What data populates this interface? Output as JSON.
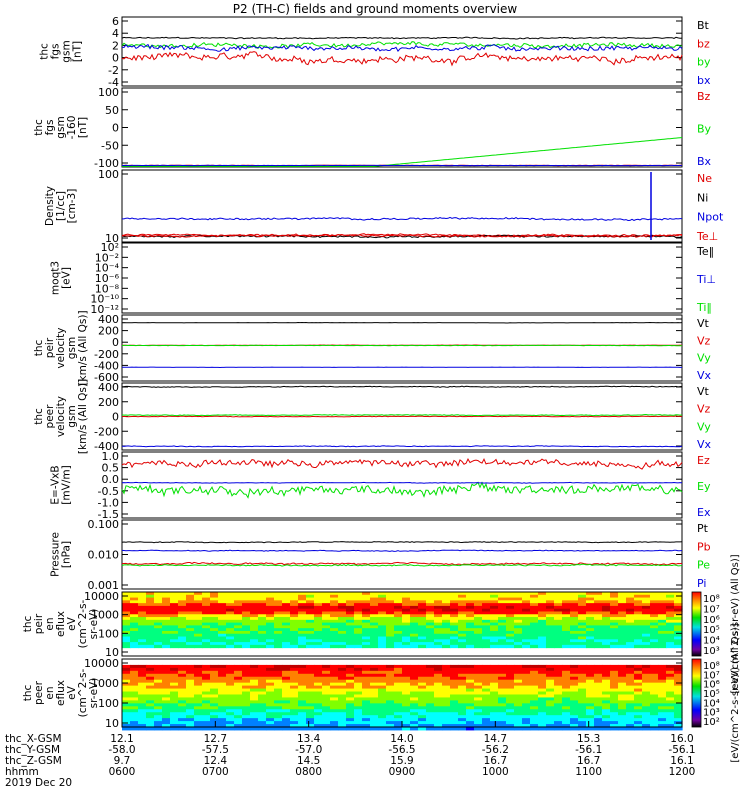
{
  "title": "P2 (TH-C) fields and ground moments overview",
  "date_label": "2019 Dec 20",
  "colors": {
    "black": "#000000",
    "red": "#e00000",
    "green": "#00e000",
    "blue": "#0000e0"
  },
  "chart_data": [
    {
      "id": "fgs",
      "type": "line",
      "ylabel": [
        "thc",
        "fgs",
        "gsm",
        "[nT]"
      ],
      "yticks": [
        "6",
        "4",
        "2",
        "0",
        "-2",
        "-4"
      ],
      "ylim": [
        -4,
        6.5
      ],
      "series": [
        {
          "name": "Bt",
          "color": "black",
          "level": 3.3,
          "noise": 0.15
        },
        {
          "name": "bz",
          "color": "red",
          "level": 0.2,
          "noise": 0.9
        },
        {
          "name": "by",
          "color": "green",
          "level": 2.2,
          "noise": 0.5
        },
        {
          "name": "bx",
          "color": "blue",
          "level": 1.8,
          "noise": 0.6
        }
      ]
    },
    {
      "id": "fgs_dsl",
      "type": "line",
      "ylabel": [
        "thc",
        "fgs",
        "gsm",
        "-160",
        "[nT]"
      ],
      "yticks": [
        "100",
        "50",
        "0",
        "-50",
        "-100"
      ],
      "ylim": [
        -160,
        100
      ],
      "series": [
        {
          "name": "Bz",
          "color": "red",
          "level": -155,
          "noise": 1
        },
        {
          "name": "By",
          "color": "green",
          "level": -100,
          "noise": 0.5
        },
        {
          "name": "Bx",
          "color": "blue",
          "level": -155,
          "noise": 0.5
        }
      ]
    },
    {
      "id": "density",
      "type": "line",
      "log": true,
      "ylabel": [
        "Density",
        "[1/cc]",
        "[cm-3]"
      ],
      "yticks": [
        "100",
        "10"
      ],
      "ylim": [
        2,
        250
      ],
      "series": [
        {
          "name": "Ne",
          "color": "red",
          "level": 3.2,
          "noise": 0.04
        },
        {
          "name": "Ni",
          "color": "black",
          "level": 2.9,
          "noise": 0.04
        },
        {
          "name": "Npot",
          "color": "blue",
          "level": 9.5,
          "noise": 0.04
        },
        {
          "name": "Te⊥",
          "color": "red",
          "level": 3.0,
          "noise": 0.04
        }
      ]
    },
    {
      "id": "temp",
      "type": "line",
      "ylabel": [
        "moqt3",
        "[eV]"
      ],
      "yticks": [
        "10²",
        "10⁻²",
        "10⁻⁴",
        "10⁻⁶",
        "10⁻⁸",
        "10⁻¹⁰",
        "10⁻¹²"
      ],
      "series": [
        {
          "name": "Te‖",
          "color": "black"
        },
        {
          "name": "Ti⊥",
          "color": "blue"
        },
        {
          "name": "Ti‖",
          "color": "green"
        }
      ]
    },
    {
      "id": "peir_vel",
      "type": "line",
      "ylabel": [
        "thc",
        "peir",
        "velocity",
        "gsm",
        "[km/s (All Qs)]"
      ],
      "yticks": [
        "400",
        "200",
        "0",
        "-200",
        "-400",
        "-600"
      ],
      "ylim": [
        -650,
        550
      ],
      "series": [
        {
          "name": "Vt",
          "color": "black",
          "level": 410,
          "noise": 4
        },
        {
          "name": "Vz",
          "color": "red",
          "level": 0,
          "noise": 5
        },
        {
          "name": "Vy",
          "color": "green",
          "level": -5,
          "noise": 5
        },
        {
          "name": "Vx",
          "color": "blue",
          "level": -400,
          "noise": 4
        }
      ]
    },
    {
      "id": "peer_vel",
      "type": "line",
      "ylabel": [
        "thc",
        "peer",
        "velocity",
        "gsm",
        "[km/s (All Qs)]"
      ],
      "yticks": [
        "400",
        "200",
        "0",
        "-200",
        "-400"
      ],
      "ylim": [
        -450,
        450
      ],
      "series": [
        {
          "name": "Vt",
          "color": "black",
          "level": 400,
          "noise": 8
        },
        {
          "name": "Vz",
          "color": "red",
          "level": 0,
          "noise": 6
        },
        {
          "name": "Vy",
          "color": "green",
          "level": 20,
          "noise": 8
        },
        {
          "name": "Vx",
          "color": "blue",
          "level": -400,
          "noise": 8
        }
      ]
    },
    {
      "id": "efield",
      "type": "line",
      "ylabel": [
        "E=-VxB",
        "[mV/m]"
      ],
      "yticks": [
        "1.0",
        "0.5",
        "0.0",
        "-0.5",
        "-1.0",
        "-1.5"
      ],
      "ylim": [
        -1.6,
        1.4
      ],
      "series": [
        {
          "name": "Ez",
          "color": "red",
          "level": 0.9,
          "noise": 0.25
        },
        {
          "name": "Ey",
          "color": "green",
          "level": -0.3,
          "noise": 0.35
        },
        {
          "name": "Ex",
          "color": "blue",
          "level": 0.0,
          "noise": 0.02
        }
      ]
    },
    {
      "id": "pressure",
      "type": "line",
      "log": true,
      "ylabel": [
        "Pressure",
        "[nPa]"
      ],
      "yticks": [
        "0.100",
        "0.010",
        "0.001"
      ],
      "ylim": [
        0.0008,
        0.12
      ],
      "series": [
        {
          "name": "Pt",
          "color": "black",
          "level": 0.024,
          "noise": 0.02
        },
        {
          "name": "Pb",
          "color": "red",
          "level": 0.005,
          "noise": 0.04
        },
        {
          "name": "Pe",
          "color": "green",
          "level": 0.0045,
          "noise": 0.03
        },
        {
          "name": "Pi",
          "color": "blue",
          "level": 0.013,
          "noise": 0.02
        }
      ]
    },
    {
      "id": "peir_eflux",
      "type": "heatmap",
      "ylabel": [
        "thc",
        "peir",
        "en",
        "eflux",
        "eV",
        "(cm^2-s-",
        "sr-eV)"
      ],
      "yticks": [
        "10000",
        "1000",
        "100",
        "10"
      ],
      "colorbar_ticks": [
        "10⁸",
        "10⁷",
        "10⁶",
        "10⁵",
        "10⁴",
        "10³"
      ],
      "colorbar_label": "[eV/(cm^2-s-sr-eV) (All Qs)]"
    },
    {
      "id": "peer_eflux",
      "type": "heatmap",
      "ylabel": [
        "thc",
        "peer",
        "en",
        "eflux",
        "eV",
        "(cm^2-s-",
        "sr-eV)"
      ],
      "yticks": [
        "10000",
        "1000",
        "100",
        "10"
      ],
      "colorbar_ticks": [
        "10⁸",
        "10⁷",
        "10⁶",
        "10⁵",
        "10⁴",
        "10³",
        "10²"
      ],
      "colorbar_label": "[eV/(cm^2-s-sr-eV) (All Qs)]"
    }
  ],
  "x_axis": {
    "row_labels": [
      "thc_X-GSM",
      "thc_Y-GSM",
      "thc_Z-GSM",
      "hhmm"
    ],
    "columns": [
      [
        "12.1",
        "-58.0",
        "9.7",
        "0600"
      ],
      [
        "12.7",
        "-57.5",
        "12.4",
        "0700"
      ],
      [
        "13.4",
        "-57.0",
        "14.5",
        "0800"
      ],
      [
        "14.0",
        "-56.5",
        "15.9",
        "0900"
      ],
      [
        "14.7",
        "-56.2",
        "16.7",
        "1000"
      ],
      [
        "15.3",
        "-56.1",
        "16.7",
        "1100"
      ],
      [
        "16.0",
        "-56.1",
        "16.1",
        "1200"
      ]
    ]
  }
}
